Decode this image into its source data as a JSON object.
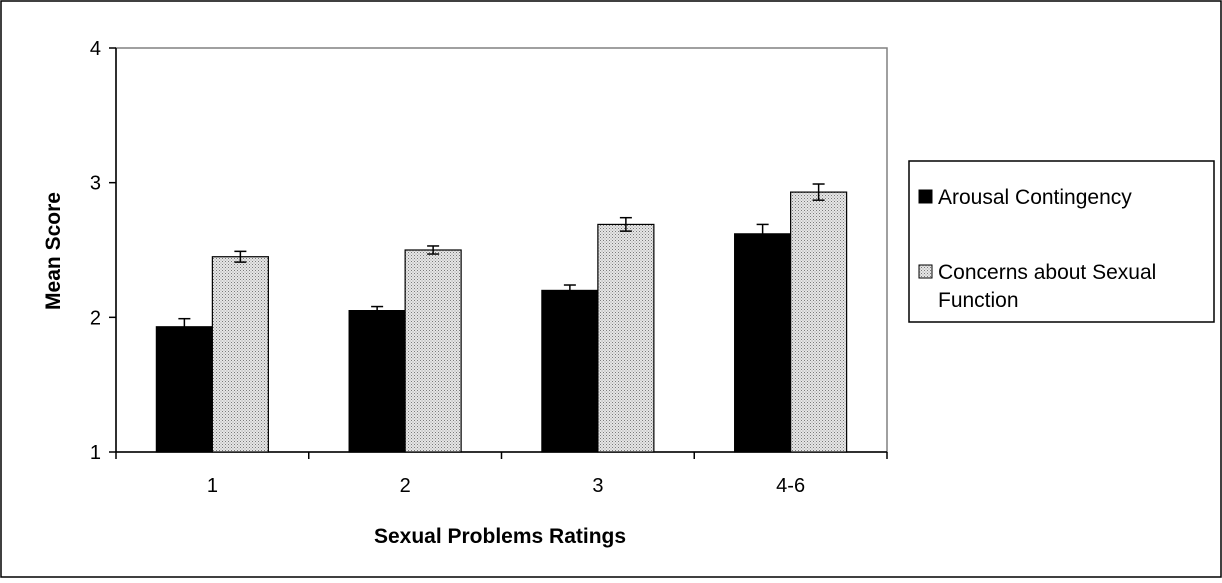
{
  "chart_data": {
    "type": "bar",
    "title": "",
    "xlabel": "Sexual Problems Ratings",
    "ylabel": "Mean Score",
    "categories": [
      "1",
      "2",
      "3",
      "4-6"
    ],
    "ylim": [
      1,
      4
    ],
    "yticks": [
      1,
      2,
      3,
      4
    ],
    "grid": false,
    "legend_position": "right",
    "series": [
      {
        "name": "Arousal Contingency",
        "values": [
          1.93,
          2.05,
          2.2,
          2.62
        ],
        "errors": [
          0.06,
          0.03,
          0.04,
          0.07
        ],
        "fill": "#000000",
        "pattern": "solid"
      },
      {
        "name": "Concerns about Sexual Function",
        "legend_lines": [
          "Concerns about Sexual",
          "Function"
        ],
        "values": [
          2.45,
          2.5,
          2.69,
          2.93
        ],
        "errors": [
          0.04,
          0.03,
          0.05,
          0.06
        ],
        "fill": "#c8c8c8",
        "pattern": "dotted-gray"
      }
    ]
  }
}
